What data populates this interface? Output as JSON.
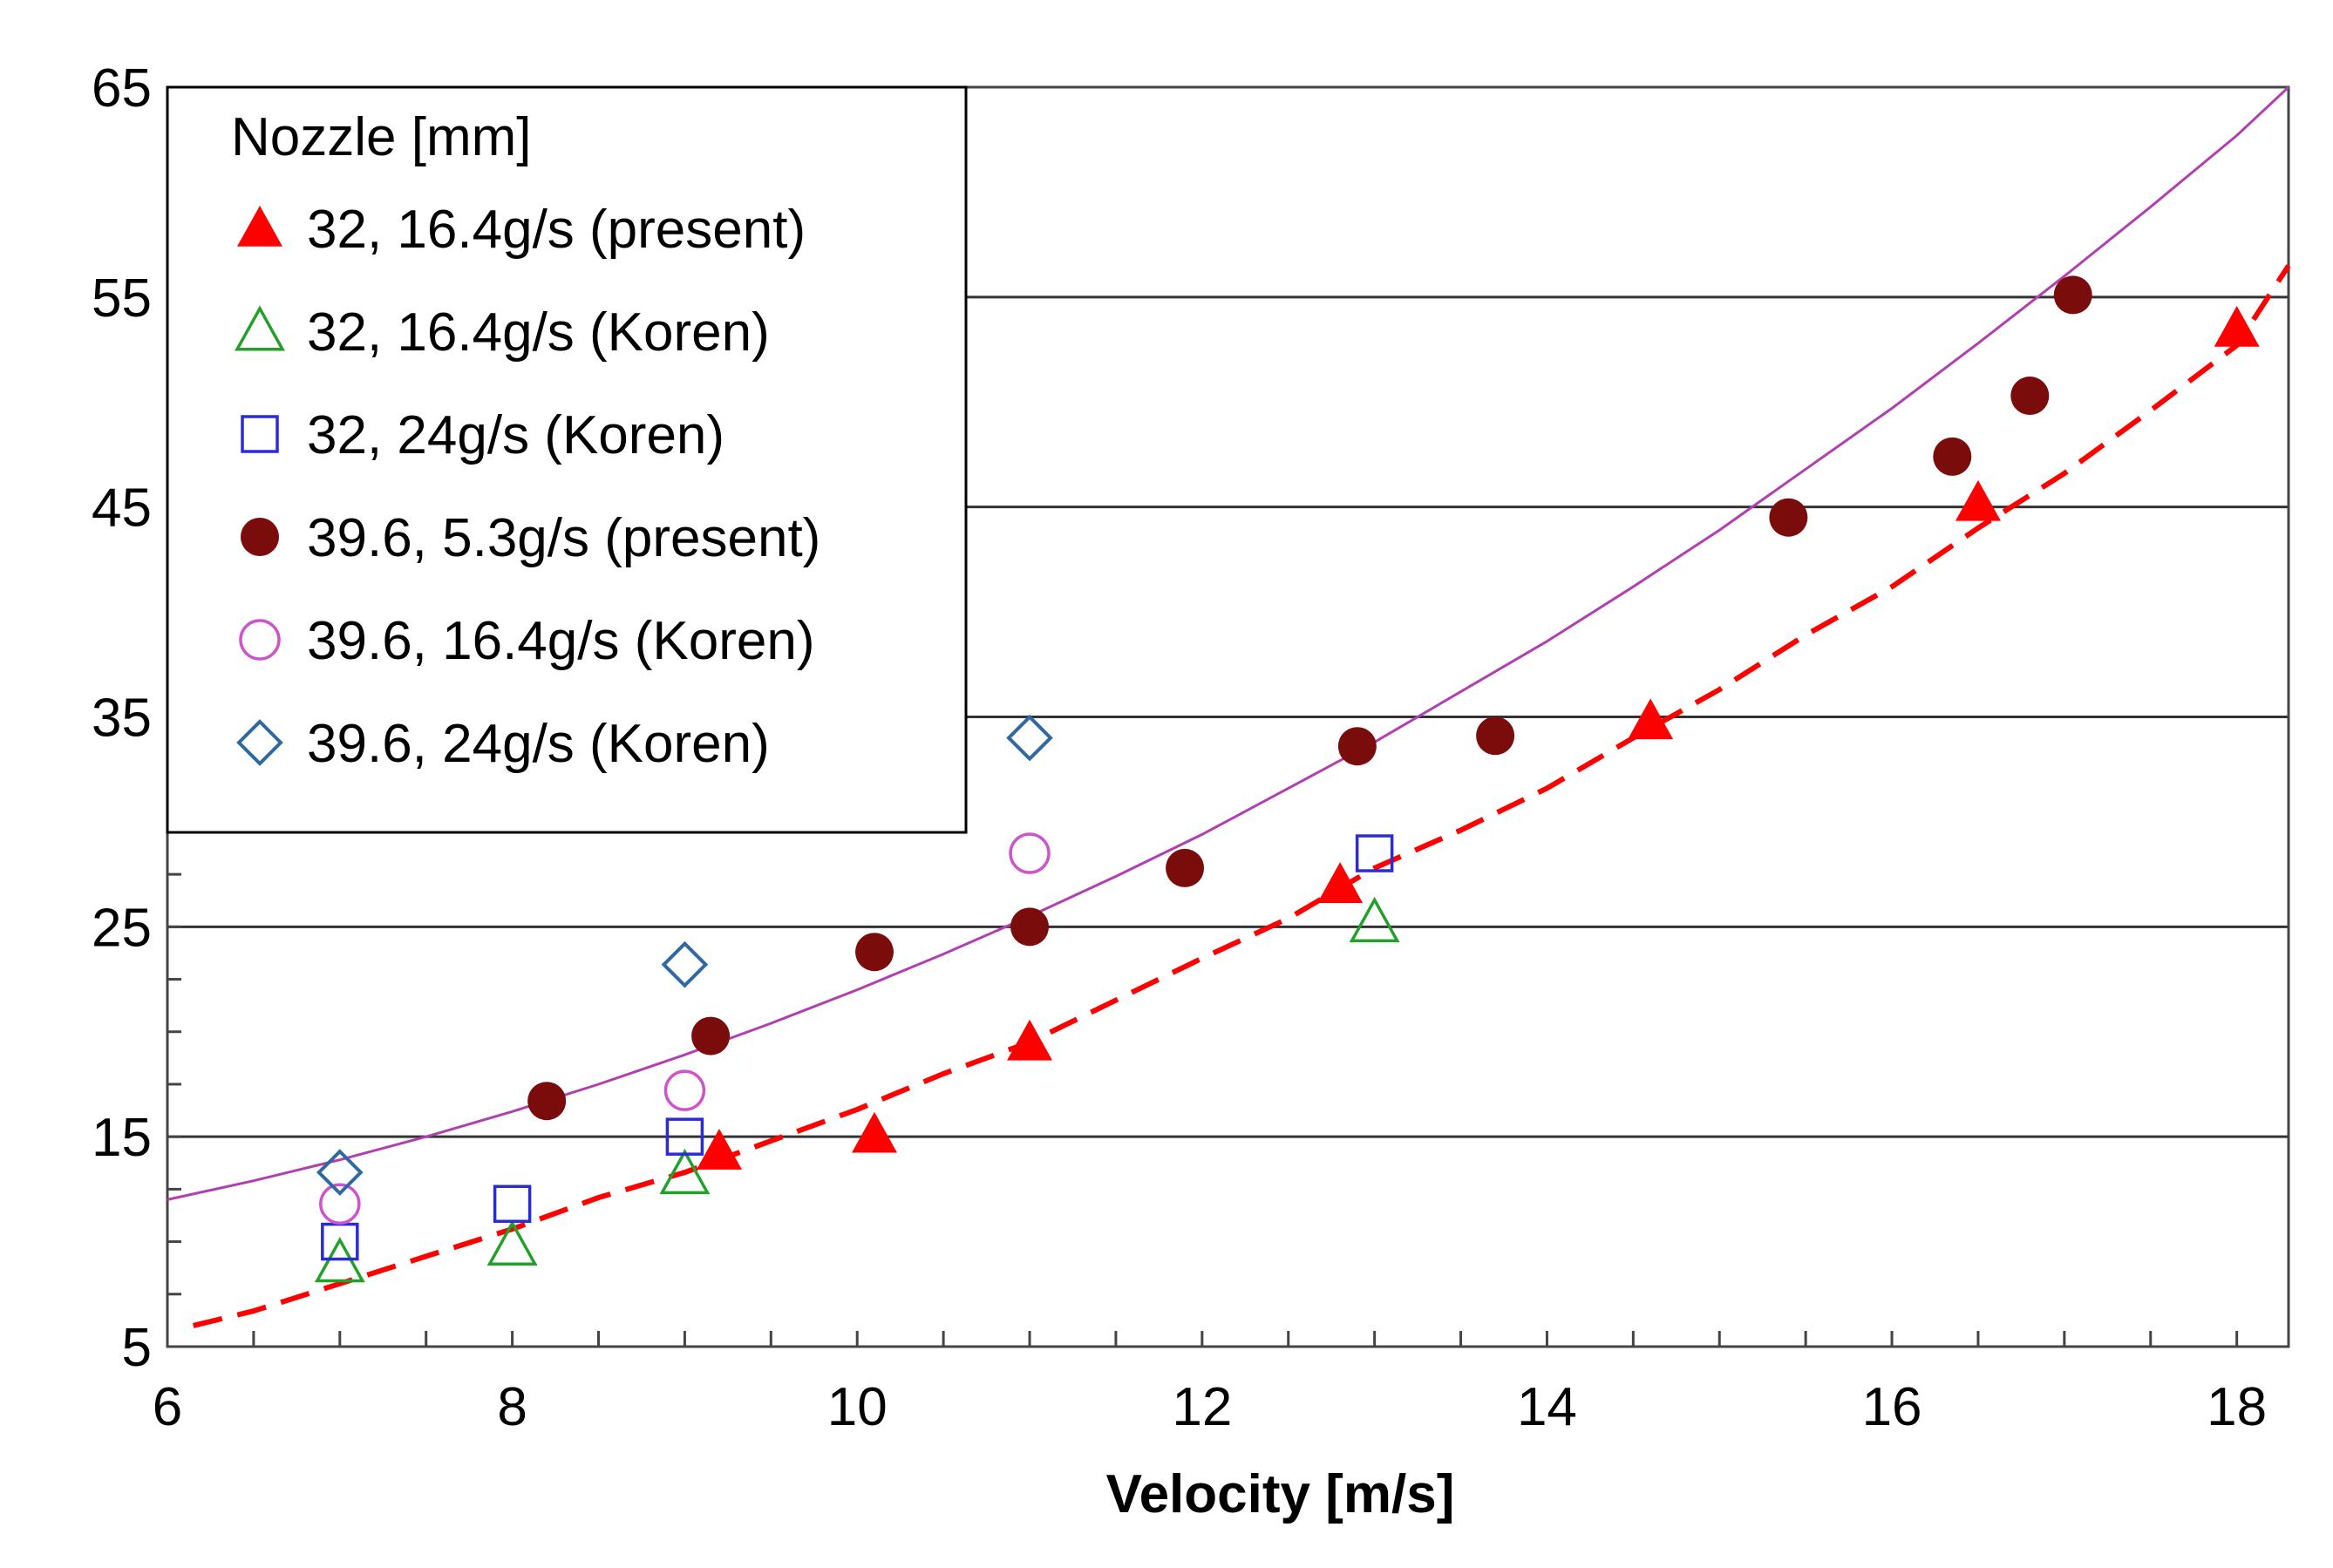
{
  "chart_data": {
    "type": "scatter",
    "title": "",
    "xlabel": "Velocity [m/s]",
    "ylabel": "",
    "xlim": [
      6,
      18.3
    ],
    "ylim": [
      5,
      65
    ],
    "xticks": [
      6,
      8,
      10,
      12,
      14,
      16,
      18
    ],
    "yticks": [
      5,
      15,
      25,
      35,
      45,
      55,
      65
    ],
    "gridlines_y": [
      15,
      25,
      35,
      45,
      55
    ],
    "legend": {
      "title": "Nozzle [mm]",
      "placement": "top-left",
      "entries": [
        {
          "label": "32, 16.4g/s (present)",
          "marker": "filled-triangle",
          "color": "#ff0000"
        },
        {
          "label": "32, 16.4g/s (Koren)",
          "marker": "open-triangle",
          "color": "#22a02a"
        },
        {
          "label": "32, 24g/s (Koren)",
          "marker": "open-square",
          "color": "#2b2bd6"
        },
        {
          "label": "39.6, 5.3g/s (present)",
          "marker": "filled-circle",
          "color": "#7a0c0c"
        },
        {
          "label": "39.6, 16.4g/s (Koren)",
          "marker": "open-circle",
          "color": "#cc55cc"
        },
        {
          "label": "39.6, 24g/s (Koren)",
          "marker": "open-diamond",
          "color": "#2e6aa0"
        }
      ]
    },
    "series": [
      {
        "name": "32, 16.4g/s (present)",
        "marker": "filled-triangle",
        "color": "#ff0000",
        "x": [
          9.2,
          10.1,
          11.0,
          12.8,
          14.6,
          16.5,
          18.0
        ],
        "y": [
          14.3,
          15.1,
          19.5,
          27.0,
          34.8,
          45.2,
          53.5
        ]
      },
      {
        "name": "32, 16.4g/s (Koren)",
        "marker": "open-triangle",
        "color": "#22a02a",
        "x": [
          7.0,
          8.0,
          9.0,
          13.0
        ],
        "y": [
          9.0,
          9.8,
          13.2,
          25.2
        ]
      },
      {
        "name": "32, 24g/s (Koren)",
        "marker": "open-square",
        "color": "#2b2bd6",
        "x": [
          7.0,
          8.0,
          9.0,
          13.0
        ],
        "y": [
          10.0,
          11.8,
          15.0,
          28.5
        ]
      },
      {
        "name": "39.6, 5.3g/s (present)",
        "marker": "filled-circle",
        "color": "#7a0c0c",
        "x": [
          8.2,
          9.15,
          10.1,
          11.0,
          11.9,
          12.9,
          13.7,
          15.4,
          16.35,
          16.8,
          17.05
        ],
        "y": [
          16.7,
          19.8,
          23.8,
          25.0,
          27.8,
          33.6,
          34.1,
          44.5,
          47.4,
          50.3,
          55.1
        ]
      },
      {
        "name": "39.6, 16.4g/s (Koren)",
        "marker": "open-circle",
        "color": "#cc55cc",
        "x": [
          7.0,
          9.0,
          11.0
        ],
        "y": [
          11.8,
          17.2,
          28.5
        ]
      },
      {
        "name": "39.6, 24g/s (Koren)",
        "marker": "open-diamond",
        "color": "#2e6aa0",
        "x": [
          7.0,
          9.0,
          11.0
        ],
        "y": [
          13.3,
          23.2,
          34.0
        ]
      }
    ],
    "fit_lines": [
      {
        "name": "dashed fit (present 32)",
        "color": "#ff0000",
        "style": "dashed",
        "x": [
          6.15,
          6.5,
          7.0,
          7.5,
          8.0,
          8.5,
          9.0,
          9.5,
          10.0,
          10.5,
          11.0,
          11.5,
          12.0,
          12.5,
          13.0,
          13.5,
          14.0,
          14.5,
          15.0,
          15.5,
          16.0,
          16.5,
          17.0,
          17.5,
          18.0,
          18.3
        ],
        "y": [
          6.0,
          6.7,
          8.0,
          9.3,
          10.6,
          12.1,
          13.3,
          14.8,
          16.3,
          18.0,
          19.5,
          21.5,
          23.5,
          25.4,
          27.8,
          29.6,
          31.6,
          34.0,
          36.3,
          38.9,
          41.2,
          44.0,
          46.6,
          49.6,
          52.7,
          56.5
        ]
      },
      {
        "name": "solid fit (Koren 39.6)",
        "color": "#b040b0",
        "style": "solid",
        "x": [
          6.0,
          6.5,
          7.0,
          7.5,
          8.0,
          8.5,
          9.0,
          9.5,
          10.0,
          10.5,
          11.0,
          11.5,
          12.0,
          12.5,
          13.0,
          13.5,
          14.0,
          14.5,
          15.0,
          15.5,
          16.0,
          16.5,
          17.0,
          17.5,
          18.0,
          18.3
        ],
        "y": [
          12.0,
          12.9,
          13.9,
          15.0,
          16.2,
          17.5,
          18.9,
          20.4,
          22.0,
          23.7,
          25.5,
          27.4,
          29.4,
          31.6,
          33.8,
          36.2,
          38.6,
          41.2,
          43.9,
          46.8,
          49.7,
          52.8,
          56.0,
          59.3,
          62.7,
          65.0
        ]
      }
    ]
  }
}
